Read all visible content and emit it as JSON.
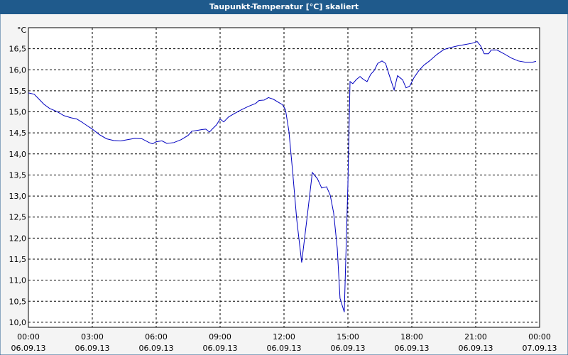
{
  "chart_data": {
    "type": "line",
    "title": "Taupunkt-Temperatur [°C] skaliert",
    "y_unit": "°C",
    "x": [
      0,
      0.27,
      0.5,
      0.73,
      1.0,
      1.33,
      1.67,
      2.0,
      2.27,
      2.5,
      2.73,
      3.0,
      3.33,
      3.67,
      4.0,
      4.33,
      4.67,
      5.0,
      5.33,
      5.67,
      5.83,
      6.0,
      6.27,
      6.5,
      6.83,
      7.17,
      7.5,
      7.67,
      7.93,
      8.17,
      8.33,
      8.5,
      8.67,
      8.83,
      9.0,
      9.17,
      9.4,
      9.67,
      10.0,
      10.33,
      10.67,
      10.83,
      11.07,
      11.27,
      11.5,
      11.73,
      11.93,
      12.07,
      12.23,
      12.4,
      12.6,
      12.83,
      13.07,
      13.33,
      13.57,
      13.77,
      14.0,
      14.17,
      14.33,
      14.5,
      14.63,
      14.83,
      15.0,
      15.1,
      15.23,
      15.4,
      15.57,
      15.73,
      15.9,
      16.07,
      16.23,
      16.4,
      16.6,
      16.77,
      16.93,
      17.17,
      17.33,
      17.57,
      17.73,
      17.9,
      18.1,
      18.33,
      18.57,
      18.83,
      19.17,
      19.5,
      19.83,
      20.17,
      20.5,
      20.83,
      21.07,
      21.23,
      21.4,
      21.6,
      21.73,
      22.0,
      22.33,
      22.67,
      23.0,
      23.33,
      23.67,
      23.83
    ],
    "series": [
      {
        "name": "Taupunkt-Temperatur",
        "color": "#0000c0",
        "values": [
          15.45,
          15.42,
          15.3,
          15.18,
          15.08,
          15.01,
          14.91,
          14.86,
          14.83,
          14.76,
          14.68,
          14.59,
          14.46,
          14.36,
          14.32,
          14.31,
          14.34,
          14.37,
          14.36,
          14.27,
          14.24,
          14.29,
          14.31,
          14.25,
          14.27,
          14.34,
          14.44,
          14.54,
          14.56,
          14.58,
          14.59,
          14.52,
          14.61,
          14.69,
          14.83,
          14.76,
          14.88,
          14.96,
          15.05,
          15.13,
          15.2,
          15.27,
          15.28,
          15.34,
          15.3,
          15.23,
          15.17,
          15.05,
          14.54,
          13.61,
          12.43,
          11.42,
          12.43,
          13.56,
          13.41,
          13.19,
          13.22,
          13.02,
          12.6,
          11.76,
          10.57,
          10.24,
          13.28,
          15.72,
          15.67,
          15.77,
          15.84,
          15.77,
          15.72,
          15.89,
          15.98,
          16.15,
          16.21,
          16.15,
          15.89,
          15.52,
          15.86,
          15.76,
          15.57,
          15.61,
          15.81,
          15.98,
          16.11,
          16.21,
          16.36,
          16.48,
          16.53,
          16.57,
          16.6,
          16.63,
          16.67,
          16.57,
          16.38,
          16.38,
          16.47,
          16.47,
          16.38,
          16.28,
          16.21,
          16.18,
          16.18,
          16.2
        ]
      }
    ],
    "xlim": [
      0,
      24
    ],
    "xticks": [
      {
        "value": 0,
        "label": "00:00"
      },
      {
        "value": 3,
        "label": "03:00"
      },
      {
        "value": 6,
        "label": "06:00"
      },
      {
        "value": 9,
        "label": "09:00"
      },
      {
        "value": 12,
        "label": "12:00"
      },
      {
        "value": 15,
        "label": "15:00"
      },
      {
        "value": 18,
        "label": "18:00"
      },
      {
        "value": 21,
        "label": "21:00"
      },
      {
        "value": 24,
        "label": "00:00"
      }
    ],
    "xtick_dates": [
      "06.09.13",
      "06.09.13",
      "06.09.13",
      "06.09.13",
      "06.09.13",
      "06.09.13",
      "06.09.13",
      "06.09.13",
      "07.09.13"
    ],
    "ylim": [
      9.88,
      17.0
    ],
    "yticks": [
      {
        "value": 10,
        "label": "10,0"
      },
      {
        "value": 10.5,
        "label": "10,5"
      },
      {
        "value": 11,
        "label": "11,0"
      },
      {
        "value": 11.5,
        "label": "11,5"
      },
      {
        "value": 12,
        "label": "12,0"
      },
      {
        "value": 12.5,
        "label": "12,5"
      },
      {
        "value": 13,
        "label": "13,0"
      },
      {
        "value": 13.5,
        "label": "13,5"
      },
      {
        "value": 14,
        "label": "14,0"
      },
      {
        "value": 14.5,
        "label": "14,5"
      },
      {
        "value": 15,
        "label": "15,0"
      },
      {
        "value": 15.5,
        "label": "15,5"
      },
      {
        "value": 16,
        "label": "16,0"
      },
      {
        "value": 16.5,
        "label": "16,5"
      }
    ],
    "grid": true
  }
}
